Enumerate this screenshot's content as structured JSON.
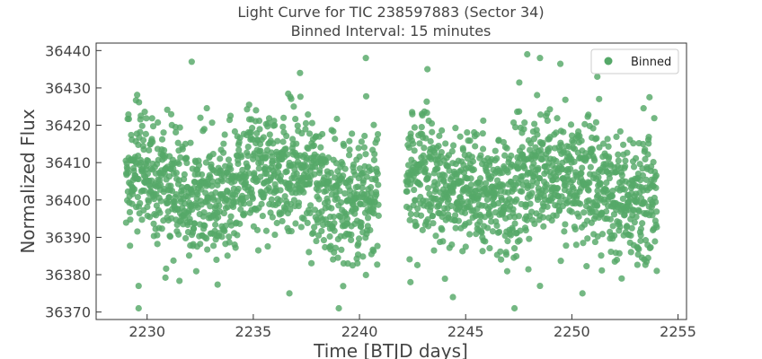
{
  "chart_data": {
    "type": "scatter",
    "title": "Light Curve for TIC 238597883 (Sector 34)",
    "subtitle": "Binned Interval: 15 minutes",
    "xlabel": "Time [BTJD days]",
    "ylabel": "Normalized Flux",
    "xlim": [
      2227.6,
      2255.4
    ],
    "ylim": [
      36368,
      36442
    ],
    "x_ticks": [
      2230,
      2235,
      2240,
      2245,
      2250,
      2255
    ],
    "y_ticks": [
      36370,
      36380,
      36390,
      36400,
      36410,
      36420,
      36430,
      36440
    ],
    "grid": false,
    "legend_position": "top-right",
    "series": [
      {
        "name": "Binned",
        "color": "#55a868",
        "segments": [
          {
            "x_start": 2229.0,
            "x_end": 2240.9,
            "y_center": 36404.0,
            "y_spread": 8.5,
            "n_points": 1100
          },
          {
            "x_start": 2242.2,
            "x_end": 2254.0,
            "y_center": 36404.0,
            "y_spread": 8.5,
            "n_points": 1100
          }
        ],
        "notable_points": [
          {
            "x": 2232.1,
            "y": 36437
          },
          {
            "x": 2240.3,
            "y": 36438
          },
          {
            "x": 2237.2,
            "y": 36434
          },
          {
            "x": 2243.2,
            "y": 36435
          },
          {
            "x": 2247.9,
            "y": 36439
          },
          {
            "x": 2248.5,
            "y": 36438
          },
          {
            "x": 2251.2,
            "y": 36433
          },
          {
            "x": 2229.6,
            "y": 36371
          },
          {
            "x": 2247.3,
            "y": 36371
          },
          {
            "x": 2236.7,
            "y": 36375
          },
          {
            "x": 2244.4,
            "y": 36374
          },
          {
            "x": 2250.5,
            "y": 36375
          },
          {
            "x": 2229.6,
            "y": 36377
          },
          {
            "x": 2242.4,
            "y": 36378
          },
          {
            "x": 2248.5,
            "y": 36377
          },
          {
            "x": 2254.0,
            "y": 36381
          }
        ]
      }
    ]
  }
}
